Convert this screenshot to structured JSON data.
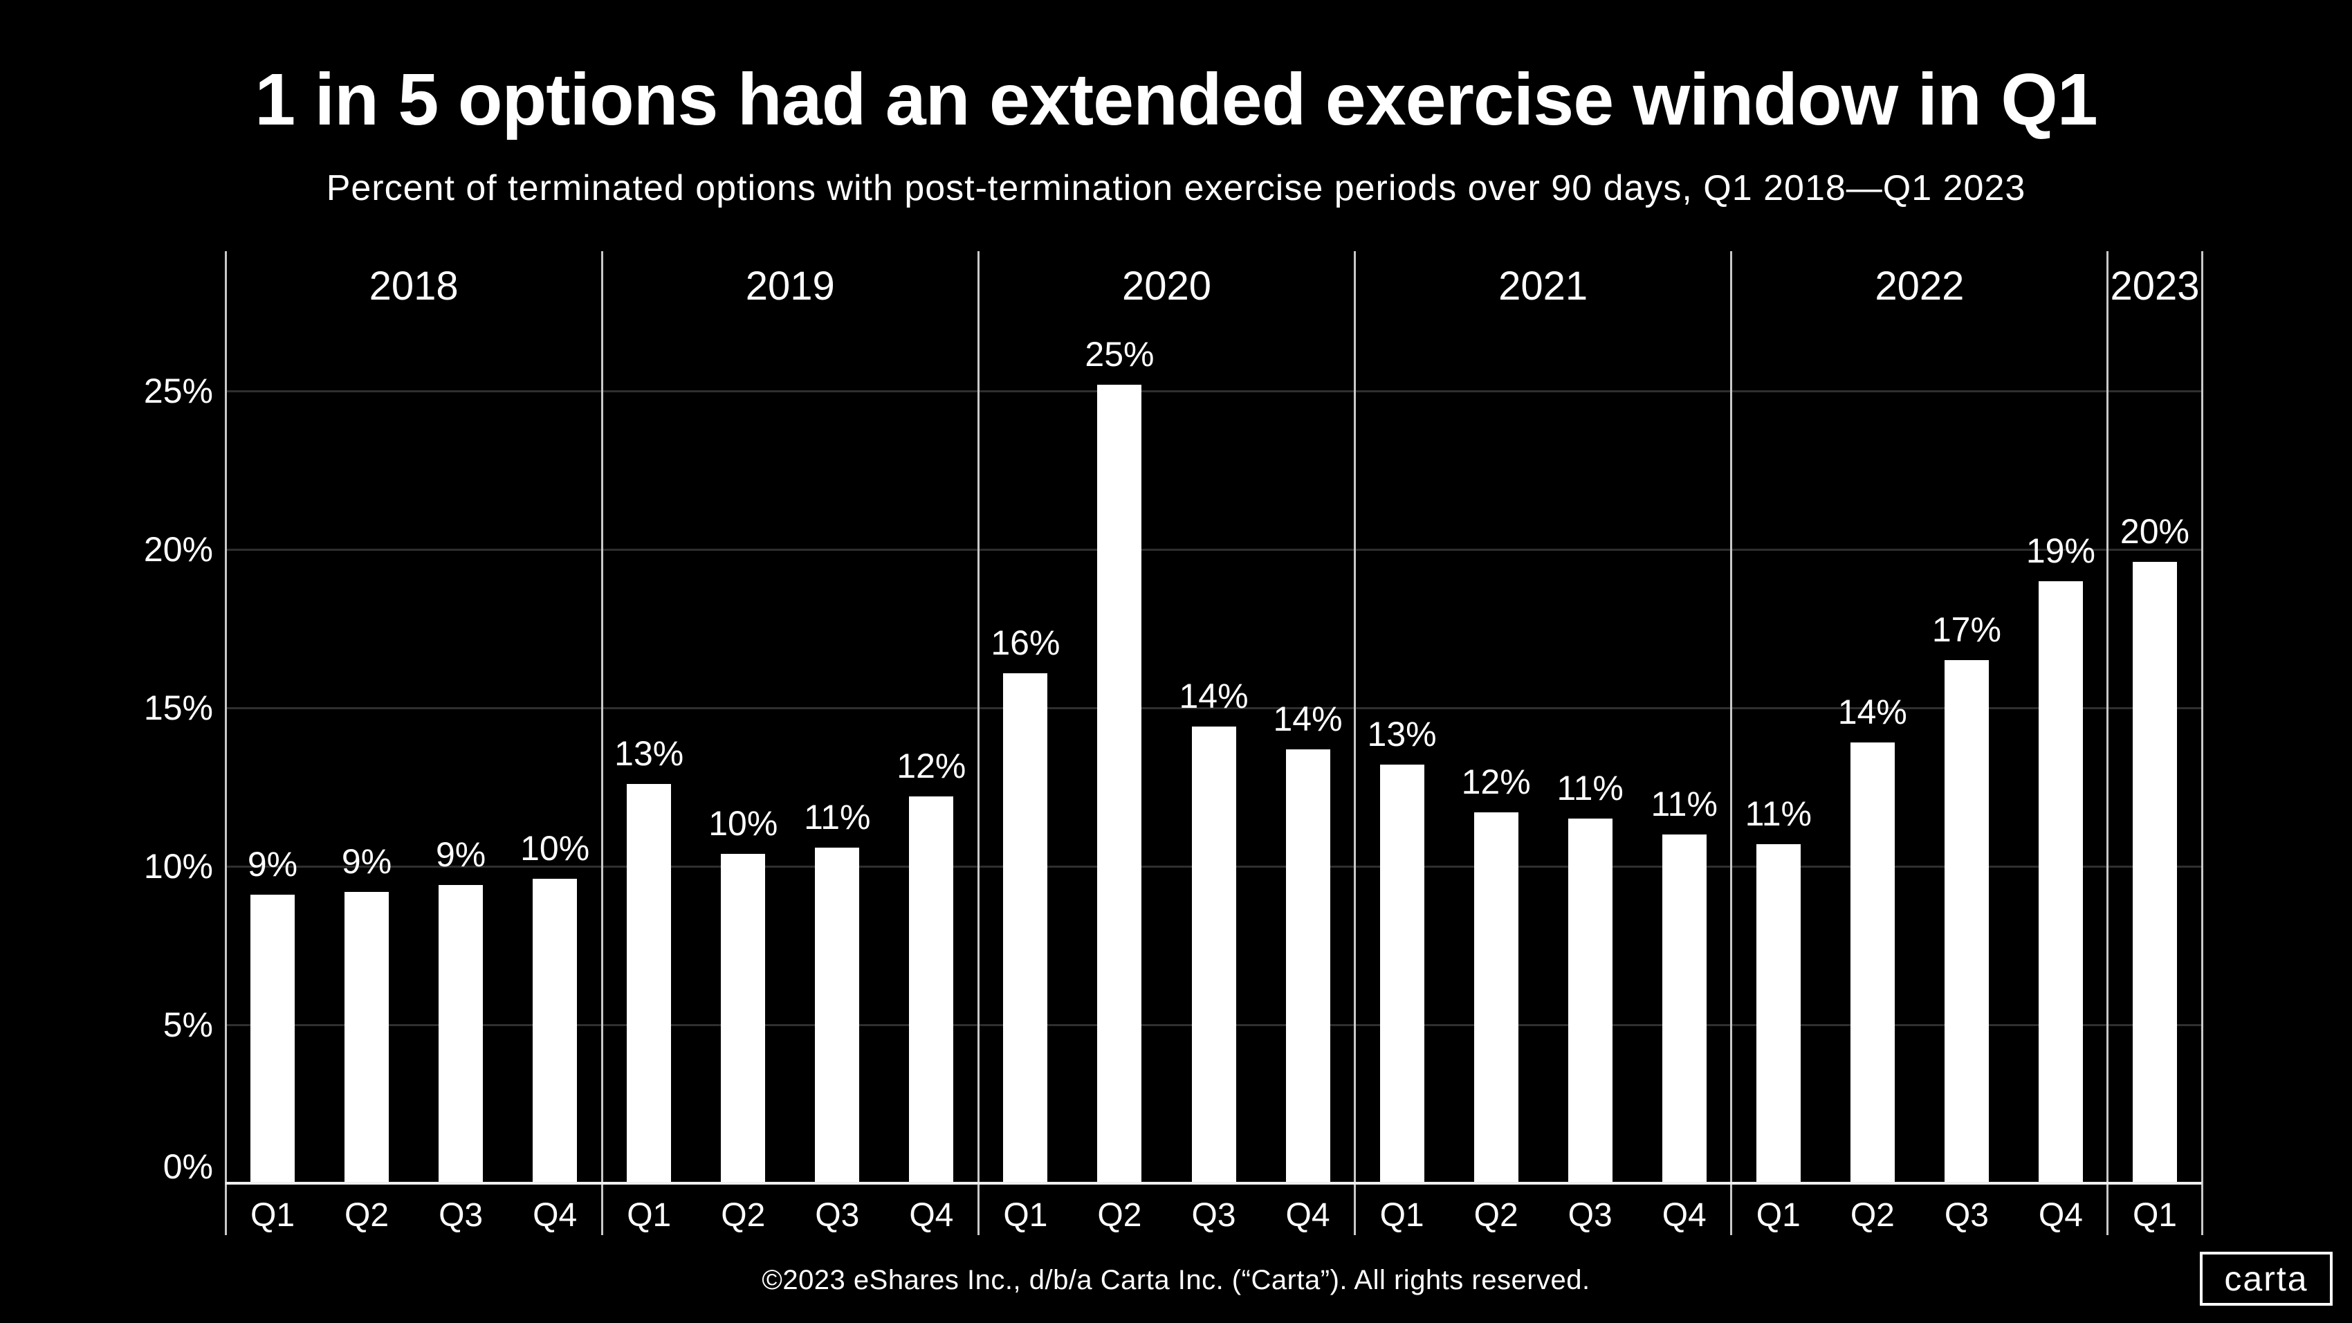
{
  "title": "1 in 5 options had an extended exercise window in Q1",
  "subtitle": "Percent of terminated options with post-termination exercise periods over 90 days, Q1 2018—Q1 2023",
  "footer": {
    "copyright": "©2023 eShares Inc., d/b/a Carta Inc. (“Carta”). All rights reserved.",
    "logo_text": "carta"
  },
  "colors": {
    "background": "#000000",
    "bar": "#ffffff",
    "text": "#ffffff",
    "gridline": "#2f2f2f",
    "separator": "#c9c9c9",
    "baseline": "#efefef"
  },
  "chart_data": {
    "type": "bar",
    "title": "1 in 5 options had an extended exercise window in Q1",
    "subtitle": "Percent of terminated options with post-termination exercise periods over 90 days, Q1 2018—Q1 2023",
    "xlabel": "",
    "ylabel": "",
    "ylim": [
      0,
      29.4
    ],
    "yticks": [
      0,
      5,
      10,
      15,
      20,
      25
    ],
    "ytick_labels": [
      "0%",
      "5%",
      "10%",
      "15%",
      "20%",
      "25%"
    ],
    "grid": "horizontal-gridlines-on, vertical-year-separators-on",
    "legend": "none",
    "bar_color": "#ffffff",
    "groups": [
      {
        "year": "2018",
        "quarters": [
          "Q1",
          "Q2",
          "Q3",
          "Q4"
        ],
        "values": [
          9.1,
          9.2,
          9.4,
          9.6
        ],
        "labels": [
          "9%",
          "9%",
          "9%",
          "10%"
        ]
      },
      {
        "year": "2019",
        "quarters": [
          "Q1",
          "Q2",
          "Q3",
          "Q4"
        ],
        "values": [
          12.6,
          10.4,
          10.6,
          12.2
        ],
        "labels": [
          "13%",
          "10%",
          "11%",
          "12%"
        ]
      },
      {
        "year": "2020",
        "quarters": [
          "Q1",
          "Q2",
          "Q3",
          "Q4"
        ],
        "values": [
          16.1,
          25.2,
          14.4,
          13.7
        ],
        "labels": [
          "16%",
          "25%",
          "14%",
          "14%"
        ]
      },
      {
        "year": "2021",
        "quarters": [
          "Q1",
          "Q2",
          "Q3",
          "Q4"
        ],
        "values": [
          13.2,
          11.7,
          11.5,
          11.0
        ],
        "labels": [
          "13%",
          "12%",
          "11%",
          "11%"
        ]
      },
      {
        "year": "2022",
        "quarters": [
          "Q1",
          "Q2",
          "Q3",
          "Q4"
        ],
        "values": [
          10.7,
          13.9,
          16.5,
          19.0
        ],
        "labels": [
          "11%",
          "14%",
          "17%",
          "19%"
        ]
      },
      {
        "year": "2023",
        "quarters": [
          "Q1"
        ],
        "values": [
          19.6
        ],
        "labels": [
          "20%"
        ]
      }
    ]
  }
}
